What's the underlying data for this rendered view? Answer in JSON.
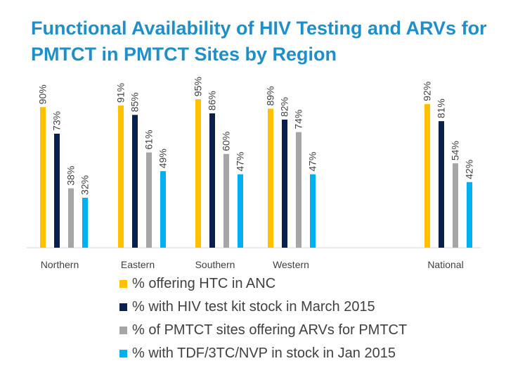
{
  "chart_data": {
    "type": "bar",
    "title_lines": [
      "Functional Availability of HIV Testing and ARVs for",
      "PMTCT in PMTCT Sites by Region"
    ],
    "categories": [
      "Northern",
      "Eastern",
      "Southern",
      "Western",
      "National"
    ],
    "series": [
      {
        "name": "% offering HTC in ANC",
        "color": "#ffc000",
        "values": [
          90,
          91,
          95,
          89,
          92
        ],
        "labels": [
          "90%",
          "91%",
          "95%",
          "89%",
          "92%"
        ]
      },
      {
        "name": "% with HIV test kit stock in March 2015",
        "color": "#0b1f4d",
        "values": [
          73,
          85,
          86,
          82,
          81
        ],
        "labels": [
          "73%",
          "85%",
          "86%",
          "82%",
          "81%"
        ]
      },
      {
        "name": "% of PMTCT sites offering ARVs for PMTCT",
        "color": "#a6a6a6",
        "values": [
          38,
          61,
          60,
          74,
          54
        ],
        "labels": [
          "38%",
          "61%",
          "60%",
          "74%",
          "54%"
        ]
      },
      {
        "name": "% with TDF/3TC/NVP in stock in Jan 2015",
        "color": "#00b0f0",
        "values": [
          32,
          49,
          47,
          47,
          42
        ],
        "labels": [
          "32%",
          "49%",
          "47%",
          "47%",
          "42%"
        ]
      }
    ],
    "ylim": [
      0,
      100
    ],
    "xlabel": "",
    "ylabel": "",
    "legend_position": "bottom",
    "grid": false
  }
}
